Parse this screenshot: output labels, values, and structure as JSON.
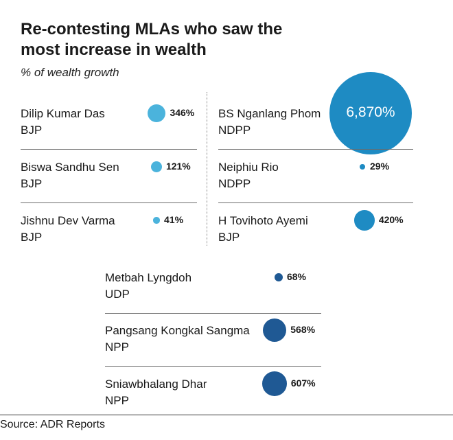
{
  "title": "Re-contesting MLAs who saw the most increase in wealth",
  "subtitle": "% of wealth growth",
  "source": "Source: ADR Reports",
  "colors": {
    "tripura": "#4bb3dc",
    "nagaland": "#1e8bc3",
    "meghalaya": "#1f5994"
  },
  "chart_data": {
    "type": "bubble",
    "title": "Re-contesting MLAs who saw the most increase in wealth",
    "subtitle": "% of wealth growth",
    "unit": "%",
    "items": [
      {
        "name": "Dilip Kumar Das",
        "party": "BJP",
        "value": 346,
        "label": "346",
        "group": "tripura"
      },
      {
        "name": "Biswa Sandhu Sen",
        "party": "BJP",
        "value": 121,
        "label": "121",
        "group": "tripura"
      },
      {
        "name": "Jishnu Dev Varma",
        "party": "BJP",
        "value": 41,
        "label": "41",
        "group": "tripura"
      },
      {
        "name": "BS Nganlang Phom",
        "party": "NDPP",
        "value": 6870,
        "label": "6,870",
        "group": "nagaland"
      },
      {
        "name": "Neiphiu Rio",
        "party": "NDPP",
        "value": 29,
        "label": "29",
        "group": "nagaland"
      },
      {
        "name": "H Tovihoto Ayemi",
        "party": "BJP",
        "value": 420,
        "label": "420",
        "group": "nagaland"
      },
      {
        "name": "Metbah Lyngdoh",
        "party": "UDP",
        "value": 68,
        "label": "68",
        "group": "meghalaya"
      },
      {
        "name": "Pangsang Kongkal Sangma",
        "party": "NPP",
        "value": 568,
        "label": "568",
        "group": "meghalaya"
      },
      {
        "name": "Sniawbhalang Dhar",
        "party": "NPP",
        "value": 607,
        "label": "607",
        "group": "meghalaya"
      }
    ]
  }
}
